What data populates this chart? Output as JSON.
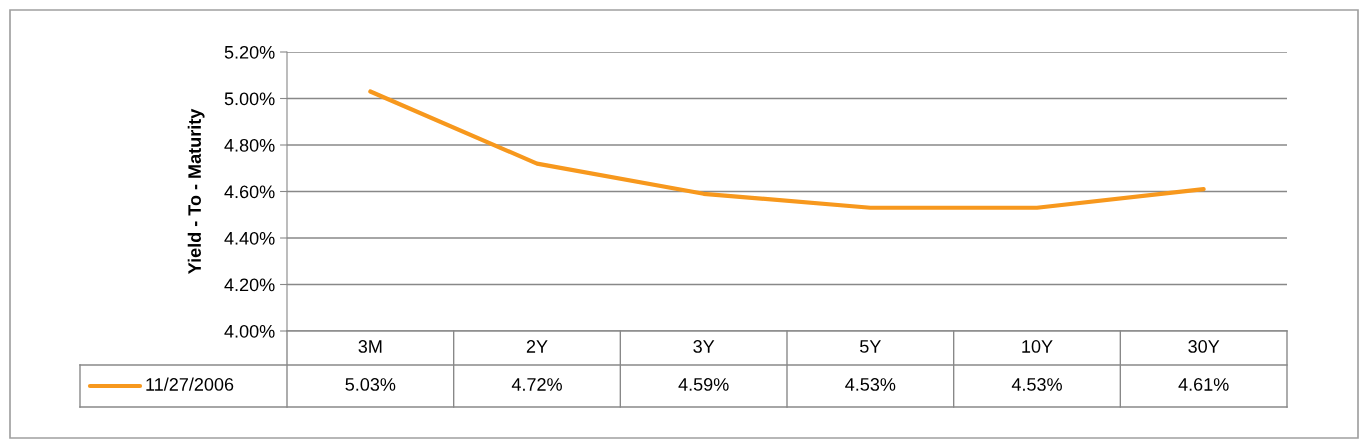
{
  "chart_data": {
    "type": "line",
    "ylabel": "Yield - To - Maturity",
    "categories": [
      "3M",
      "2Y",
      "3Y",
      "5Y",
      "10Y",
      "30Y"
    ],
    "series": [
      {
        "name": "11/27/2006",
        "color": "#f7981d",
        "values": [
          5.03,
          4.72,
          4.59,
          4.53,
          4.53,
          4.61
        ],
        "value_labels": [
          "5.03%",
          "4.72%",
          "4.59%",
          "4.53%",
          "4.53%",
          "4.61%"
        ]
      }
    ],
    "ylim": [
      4.0,
      5.2
    ],
    "yticks": [
      {
        "value": 4.0,
        "label": "4.00%"
      },
      {
        "value": 4.2,
        "label": "4.20%"
      },
      {
        "value": 4.4,
        "label": "4.40%"
      },
      {
        "value": 4.6,
        "label": "4.60%"
      },
      {
        "value": 4.8,
        "label": "4.80%"
      },
      {
        "value": 5.0,
        "label": "5.00%"
      },
      {
        "value": 5.2,
        "label": "5.20%"
      }
    ],
    "grid": "y",
    "legend": "bottom",
    "marker": "none",
    "line_style": "solid"
  }
}
